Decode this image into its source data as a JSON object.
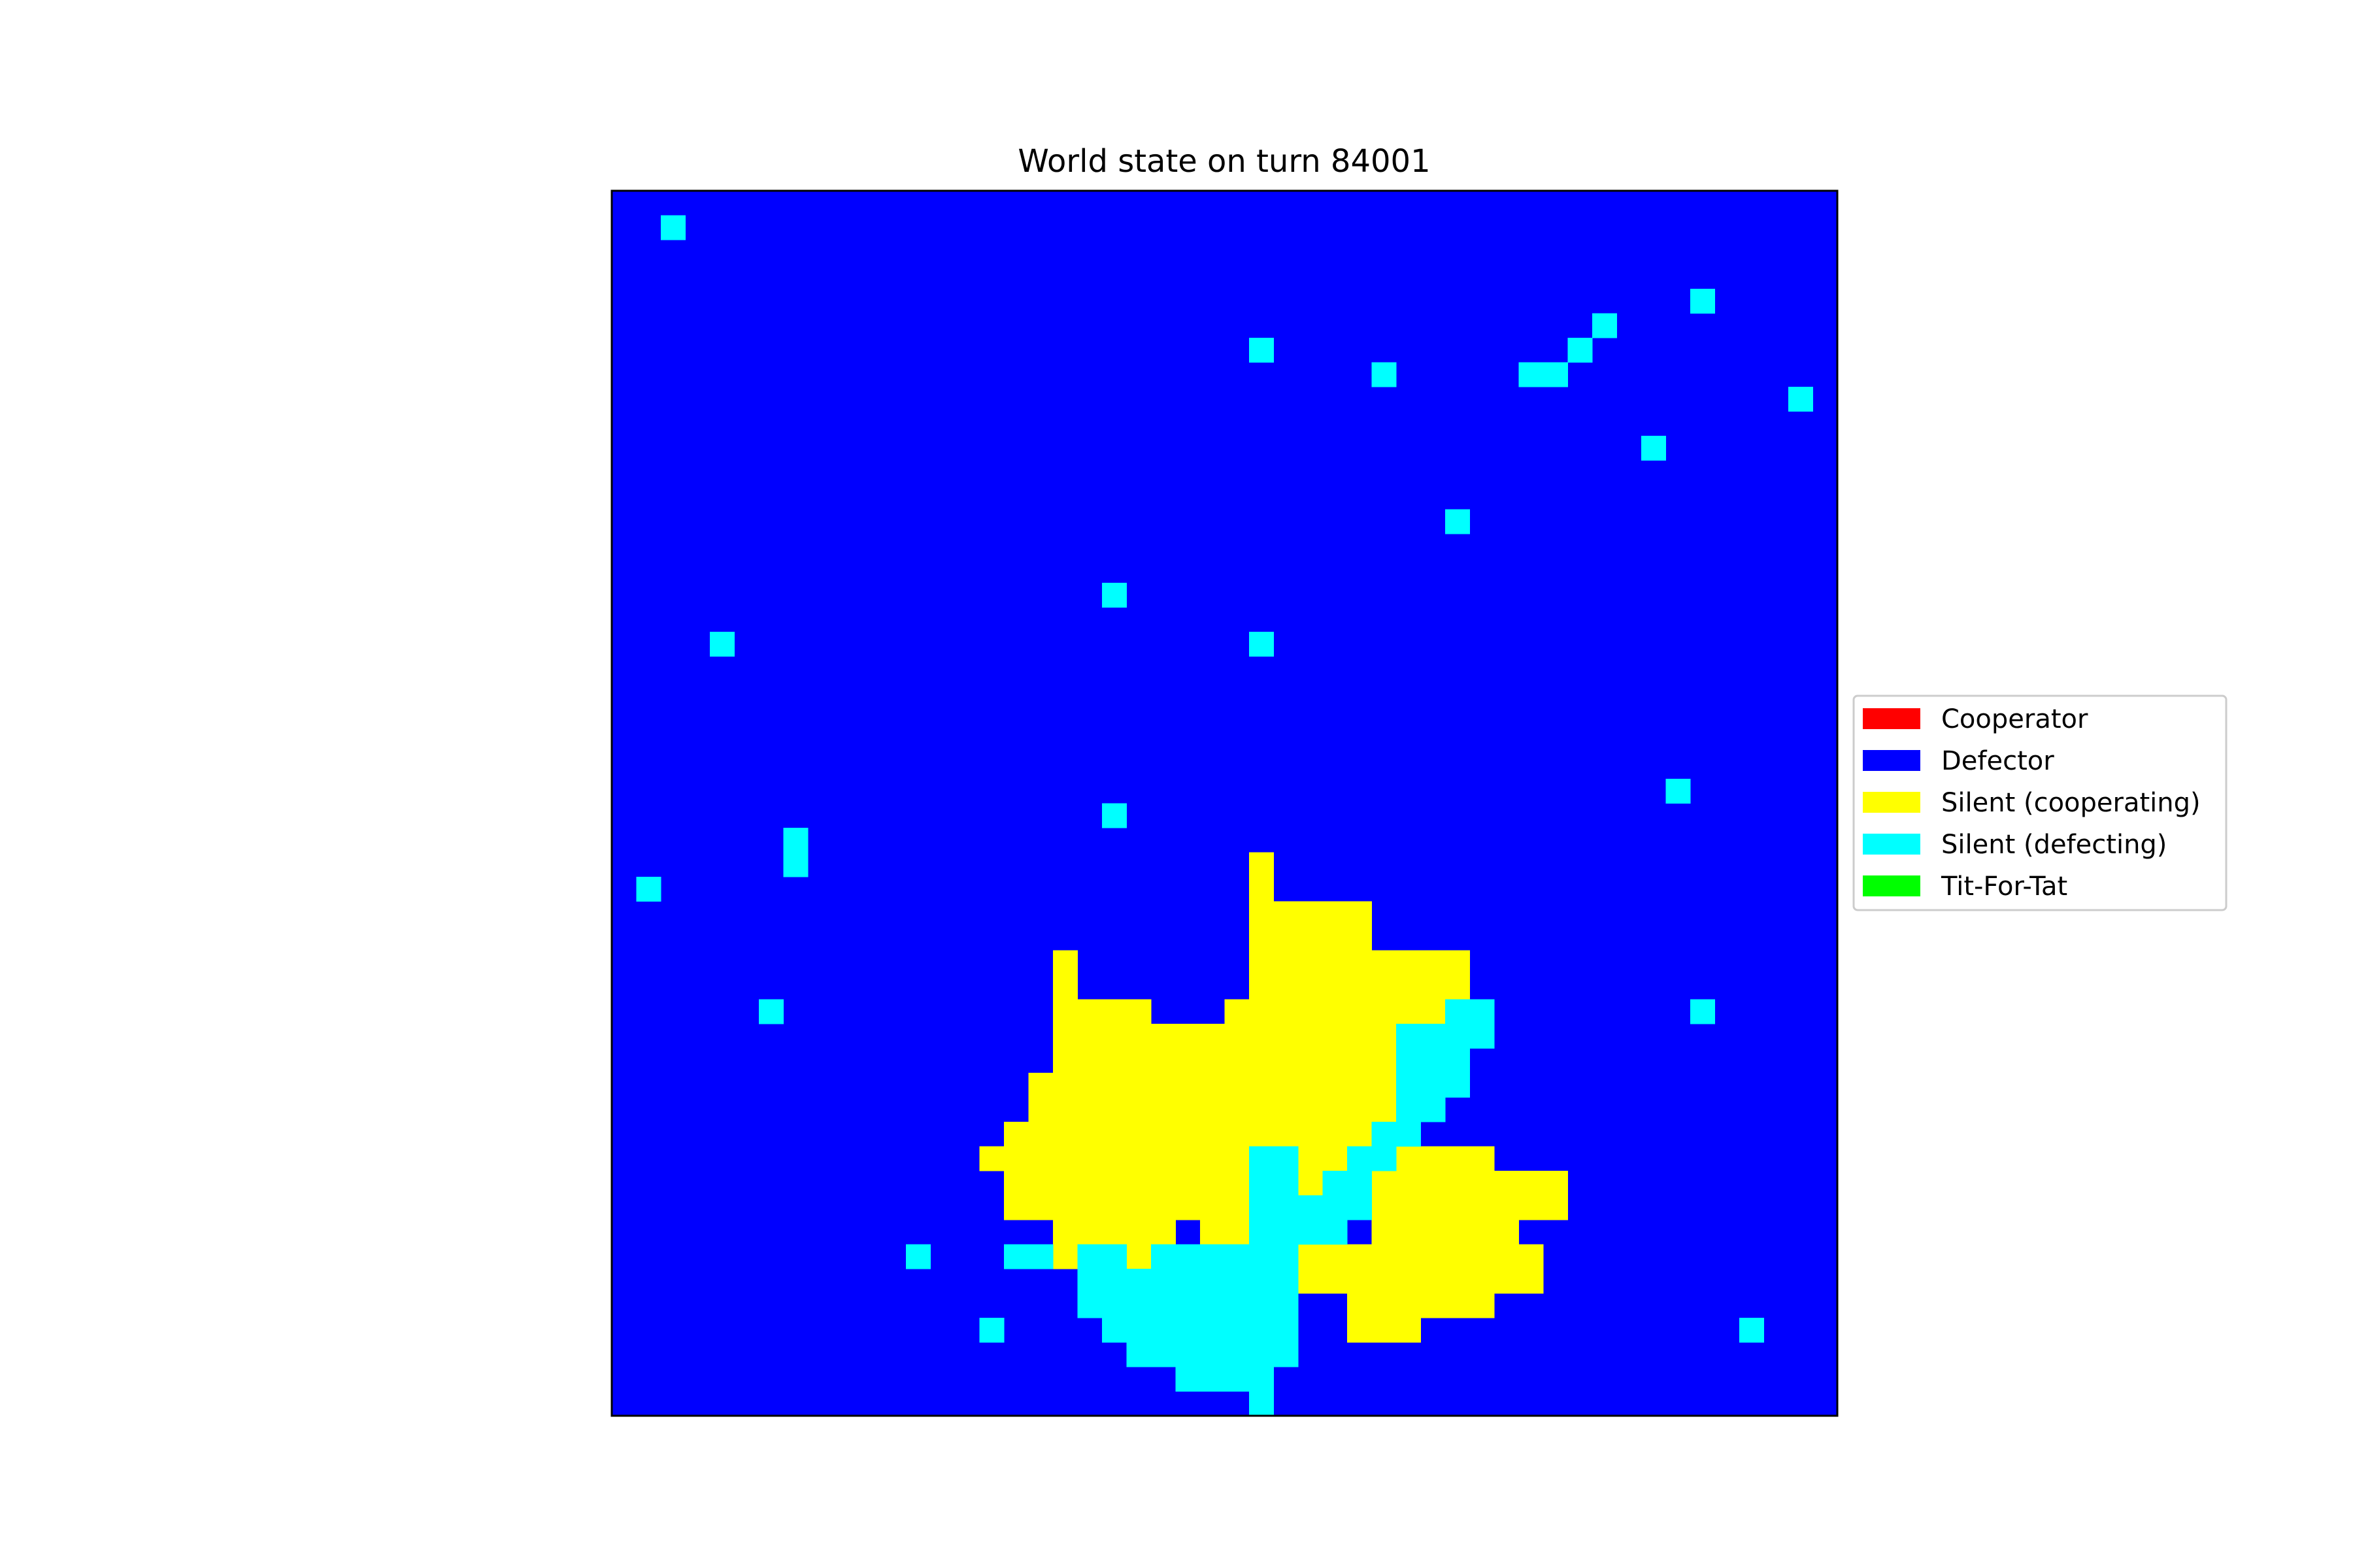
{
  "chart_data": {
    "type": "heatmap",
    "title": "World state on turn 84001",
    "grid": false,
    "legend_position": "right",
    "rows": 50,
    "cols": 50,
    "background_class": "D",
    "classes": {
      "C": {
        "label": "Cooperator",
        "color": "#ff0000"
      },
      "D": {
        "label": "Defector",
        "color": "#0000ff"
      },
      "Y": {
        "label": "Silent (cooperating)",
        "color": "#ffff00"
      },
      "S": {
        "label": "Silent (defecting)",
        "color": "#00ffff"
      },
      "T": {
        "label": "Tit-For-Tat",
        "color": "#00ff00"
      }
    },
    "legend_order": [
      "C",
      "D",
      "Y",
      "S",
      "T"
    ],
    "runs": [
      [
        "Y",
        27,
        26,
        26
      ],
      [
        "Y",
        28,
        26,
        26
      ],
      [
        "Y",
        29,
        26,
        30
      ],
      [
        "Y",
        30,
        26,
        30
      ],
      [
        "Y",
        31,
        18,
        18
      ],
      [
        "Y",
        31,
        26,
        34
      ],
      [
        "Y",
        32,
        18,
        18
      ],
      [
        "Y",
        32,
        26,
        34
      ],
      [
        "Y",
        33,
        18,
        21
      ],
      [
        "Y",
        33,
        25,
        34
      ],
      [
        "Y",
        34,
        18,
        31
      ],
      [
        "Y",
        35,
        18,
        31
      ],
      [
        "Y",
        36,
        17,
        31
      ],
      [
        "Y",
        37,
        17,
        31
      ],
      [
        "Y",
        38,
        16,
        31
      ],
      [
        "Y",
        39,
        15,
        29
      ],
      [
        "Y",
        39,
        32,
        35
      ],
      [
        "Y",
        40,
        16,
        25
      ],
      [
        "Y",
        40,
        28,
        28
      ],
      [
        "Y",
        40,
        31,
        38
      ],
      [
        "Y",
        41,
        16,
        25
      ],
      [
        "Y",
        41,
        31,
        38
      ],
      [
        "Y",
        42,
        18,
        21
      ],
      [
        "Y",
        42,
        22,
        22
      ],
      [
        "Y",
        42,
        24,
        25
      ],
      [
        "Y",
        42,
        31,
        36
      ],
      [
        "Y",
        43,
        18,
        18
      ],
      [
        "Y",
        43,
        21,
        21
      ],
      [
        "Y",
        43,
        28,
        37
      ],
      [
        "Y",
        44,
        28,
        37
      ],
      [
        "Y",
        45,
        30,
        35
      ],
      [
        "Y",
        46,
        30,
        32
      ],
      [
        "S",
        33,
        34,
        35
      ],
      [
        "S",
        34,
        32,
        35
      ],
      [
        "S",
        35,
        32,
        34
      ],
      [
        "S",
        36,
        32,
        34
      ],
      [
        "S",
        37,
        32,
        33
      ],
      [
        "S",
        38,
        31,
        32
      ],
      [
        "S",
        39,
        26,
        27
      ],
      [
        "S",
        39,
        30,
        31
      ],
      [
        "S",
        40,
        26,
        27
      ],
      [
        "S",
        40,
        29,
        30
      ],
      [
        "S",
        41,
        26,
        30
      ],
      [
        "S",
        42,
        26,
        29
      ],
      [
        "S",
        43,
        16,
        17
      ],
      [
        "S",
        43,
        19,
        20
      ],
      [
        "S",
        43,
        22,
        27
      ],
      [
        "S",
        44,
        19,
        27
      ],
      [
        "S",
        45,
        19,
        27
      ],
      [
        "S",
        46,
        20,
        27
      ],
      [
        "S",
        47,
        21,
        27
      ],
      [
        "S",
        48,
        23,
        26
      ],
      [
        "S",
        49,
        26,
        26
      ],
      [
        "S",
        1,
        2,
        2
      ],
      [
        "S",
        4,
        44,
        44
      ],
      [
        "S",
        5,
        40,
        40
      ],
      [
        "S",
        6,
        26,
        26
      ],
      [
        "S",
        6,
        39,
        39
      ],
      [
        "S",
        7,
        31,
        31
      ],
      [
        "S",
        7,
        37,
        38
      ],
      [
        "S",
        8,
        48,
        48
      ],
      [
        "S",
        10,
        42,
        42
      ],
      [
        "S",
        13,
        34,
        34
      ],
      [
        "S",
        16,
        20,
        20
      ],
      [
        "S",
        18,
        4,
        4
      ],
      [
        "S",
        18,
        26,
        26
      ],
      [
        "S",
        24,
        43,
        43
      ],
      [
        "S",
        25,
        20,
        20
      ],
      [
        "S",
        26,
        7,
        7
      ],
      [
        "S",
        27,
        7,
        7
      ],
      [
        "S",
        28,
        1,
        1
      ],
      [
        "S",
        33,
        6,
        6
      ],
      [
        "S",
        33,
        44,
        44
      ],
      [
        "S",
        43,
        12,
        12
      ],
      [
        "S",
        46,
        15,
        15
      ],
      [
        "S",
        46,
        46,
        46
      ]
    ]
  }
}
